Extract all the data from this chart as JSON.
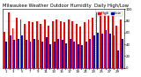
{
  "title": "Milwaukee Weather Outdoor Humidity  Daily High/Low",
  "title_fontsize": 3.8,
  "highs": [
    62,
    95,
    68,
    85,
    82,
    75,
    80,
    78,
    80,
    75,
    82,
    72,
    80,
    82,
    80,
    78,
    82,
    80,
    75,
    70,
    78,
    82,
    85,
    95,
    92,
    95,
    90,
    88,
    72,
    82
  ],
  "lows": [
    45,
    55,
    48,
    50,
    55,
    48,
    45,
    50,
    48,
    45,
    52,
    40,
    45,
    50,
    48,
    42,
    50,
    45,
    40,
    38,
    45,
    50,
    55,
    60,
    58,
    65,
    58,
    55,
    30,
    50
  ],
  "bar_color_high": "#ff0000",
  "bar_color_low": "#0000cc",
  "background_color": "#ffffff",
  "ylim": [
    0,
    100
  ],
  "legend_high": "High",
  "legend_low": "Low",
  "grid_color": "#cccccc",
  "ytick_labels": [
    "0",
    "20",
    "40",
    "60",
    "80",
    "100"
  ],
  "yticks": [
    0,
    20,
    40,
    60,
    80,
    100
  ],
  "xtick_labels": [
    "1",
    "",
    "3",
    "",
    "5",
    "",
    "7",
    "",
    "9",
    "",
    "11",
    "",
    "13",
    "",
    "15",
    "",
    "17",
    "",
    "19",
    "",
    "21",
    "",
    "23",
    "",
    "25",
    "",
    "27",
    "",
    "29",
    ""
  ],
  "dotted_line_x": 23,
  "tick_fontsize": 2.8,
  "legend_fontsize": 3.0
}
